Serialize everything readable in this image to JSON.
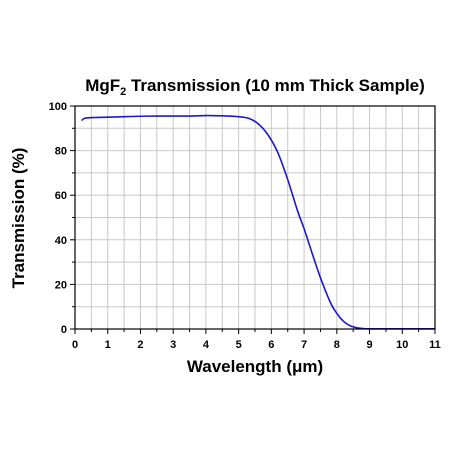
{
  "chart_data": {
    "type": "line",
    "title_main": "MgF",
    "title_sub": "2",
    "title_rest": " Transmission (10 mm Thick Sample)",
    "xlabel": "Wavelength (μm)",
    "ylabel": "Transmission (%)",
    "xlim": [
      0,
      11
    ],
    "ylim": [
      0,
      100
    ],
    "xticks": [
      "0",
      "1",
      "2",
      "3",
      "4",
      "5",
      "6",
      "7",
      "8",
      "9",
      "10",
      "11"
    ],
    "yticks": [
      "0",
      "20",
      "40",
      "60",
      "80",
      "100"
    ],
    "grid": true,
    "series": [
      {
        "color": "#1a1acc",
        "x": [
          0.2,
          0.3,
          0.5,
          1.0,
          1.5,
          2.0,
          2.5,
          3.0,
          3.5,
          4.0,
          4.5,
          5.0,
          5.3,
          5.6,
          5.9,
          6.2,
          6.5,
          6.8,
          7.0,
          7.2,
          7.5,
          7.8,
          8.0,
          8.2,
          8.4,
          8.6,
          8.8,
          9.0,
          9.5,
          10.0,
          10.5,
          11.0
        ],
        "y": [
          93.5,
          94.5,
          94.8,
          95.0,
          95.2,
          95.4,
          95.5,
          95.5,
          95.5,
          95.7,
          95.6,
          95.2,
          94.5,
          92.0,
          87.0,
          79.0,
          67.0,
          53.0,
          45.0,
          36.0,
          23.0,
          12.0,
          7.0,
          3.5,
          1.5,
          0.6,
          0.2,
          0.1,
          0.1,
          0.1,
          0.1,
          0.1
        ]
      }
    ]
  }
}
